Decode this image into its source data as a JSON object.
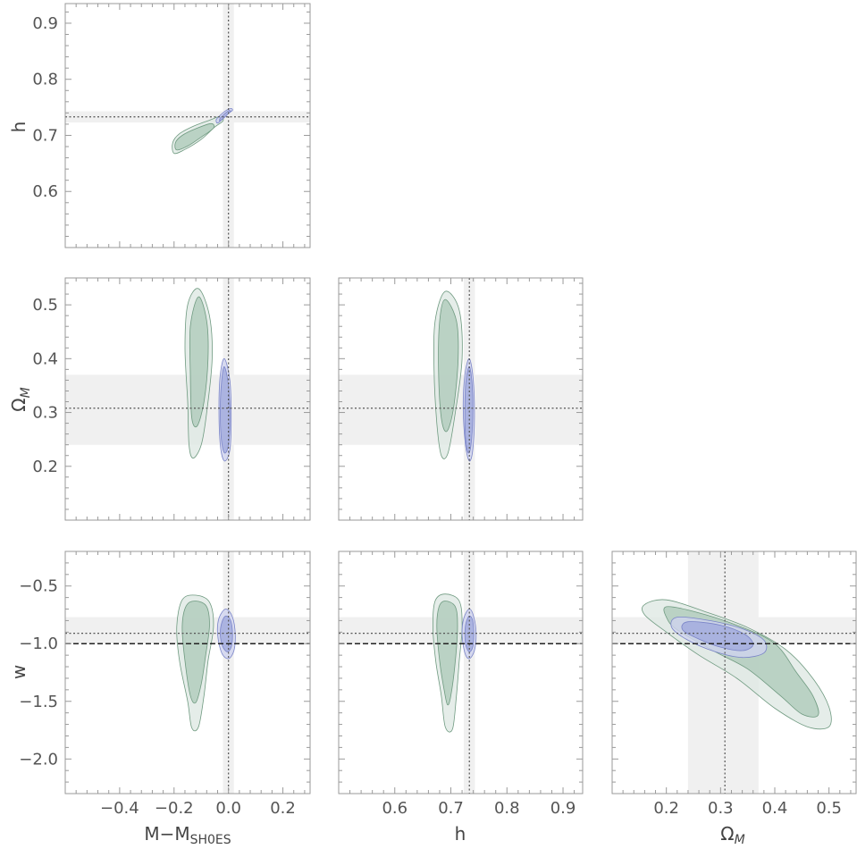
{
  "chart_data": {
    "type": "contour",
    "colors": {
      "green_fill_outer": "#dfe9e3",
      "green_fill_inner": "#b3cdbd",
      "green_stroke": "#6f9a80",
      "blue_fill_outer": "#cfd3ef",
      "blue_fill_inner": "#a3abdd",
      "blue_stroke": "#7a84c8",
      "band": "#f0f0f0",
      "frame": "#9a9a9a"
    },
    "labels": {
      "x_M": "M−M",
      "x_M_sub": "SH0ES",
      "x_h": "h",
      "x_Om": "Ω",
      "x_Om_sub": "M",
      "y_h": "h",
      "y_Om": "Ω",
      "y_Om_sub": "M",
      "y_w": "w"
    },
    "axes": {
      "M": {
        "range": [
          -0.6,
          0.3
        ],
        "ticks": [
          "−0.4",
          "−0.2",
          "0.0",
          "0.2"
        ],
        "tick_values": [
          -0.4,
          -0.2,
          0.0,
          0.2
        ]
      },
      "h": {
        "range": [
          0.5,
          0.935
        ],
        "ticks": [
          "0.6",
          "0.7",
          "0.8",
          "0.9"
        ],
        "tick_values": [
          0.6,
          0.7,
          0.8,
          0.9
        ]
      },
      "Om": {
        "range": [
          0.1,
          0.55
        ],
        "ticks": [
          "0.2",
          "0.3",
          "0.4",
          "0.5"
        ],
        "tick_values": [
          0.2,
          0.3,
          0.4,
          0.5
        ]
      },
      "w": {
        "range": [
          -2.3,
          -0.2
        ],
        "ticks": [
          "−2.0",
          "−1.5",
          "−1.0",
          "−0.5"
        ],
        "tick_values": [
          -2.0,
          -1.5,
          -1.0,
          -0.5
        ]
      }
    },
    "reference": {
      "M": {
        "value": 0.0,
        "band": [
          -0.02,
          0.02
        ]
      },
      "h": {
        "value": 0.733,
        "band": [
          0.723,
          0.743
        ]
      },
      "Om": {
        "value": 0.308,
        "band": [
          0.24,
          0.37
        ]
      },
      "w": {
        "value": -0.91,
        "band": [
          -1.0,
          -0.77
        ],
        "dashed": -1.0
      }
    },
    "panels": [
      {
        "name": "h-vs-M",
        "x": "M",
        "y": "h",
        "green": {
          "outer": [
            [
              -0.2,
              0.668
            ],
            [
              -0.16,
              0.675
            ],
            [
              -0.1,
              0.693
            ],
            [
              -0.05,
              0.715
            ],
            [
              -0.02,
              0.726
            ],
            [
              -0.03,
              0.734
            ],
            [
              -0.07,
              0.727
            ],
            [
              -0.13,
              0.716
            ],
            [
              -0.18,
              0.703
            ],
            [
              -0.205,
              0.687
            ]
          ],
          "inner": [
            [
              -0.19,
              0.674
            ],
            [
              -0.15,
              0.681
            ],
            [
              -0.1,
              0.697
            ],
            [
              -0.055,
              0.713
            ],
            [
              -0.065,
              0.721
            ],
            [
              -0.12,
              0.712
            ],
            [
              -0.17,
              0.7
            ],
            [
              -0.195,
              0.687
            ]
          ]
        },
        "blue": {
          "outer": [
            [
              -0.04,
              0.722
            ],
            [
              -0.02,
              0.73
            ],
            [
              0.0,
              0.739
            ],
            [
              0.015,
              0.745
            ],
            [
              0.008,
              0.748
            ],
            [
              -0.01,
              0.744
            ],
            [
              -0.03,
              0.736
            ],
            [
              -0.045,
              0.728
            ]
          ],
          "inner": [
            [
              -0.032,
              0.726
            ],
            [
              -0.015,
              0.732
            ],
            [
              0.0,
              0.739
            ],
            [
              0.008,
              0.743
            ],
            [
              0.0,
              0.744
            ],
            [
              -0.015,
              0.738
            ],
            [
              -0.03,
              0.731
            ]
          ]
        }
      },
      {
        "name": "Om-vs-M",
        "x": "M",
        "y": "Om",
        "green": {
          "outer": [
            [
              -0.11,
              0.53
            ],
            [
              -0.07,
              0.48
            ],
            [
              -0.06,
              0.4
            ],
            [
              -0.08,
              0.3
            ],
            [
              -0.1,
              0.24
            ],
            [
              -0.13,
              0.215
            ],
            [
              -0.145,
              0.24
            ],
            [
              -0.15,
              0.32
            ],
            [
              -0.16,
              0.42
            ],
            [
              -0.15,
              0.5
            ]
          ],
          "inner": [
            [
              -0.11,
              0.515
            ],
            [
              -0.08,
              0.47
            ],
            [
              -0.075,
              0.4
            ],
            [
              -0.09,
              0.32
            ],
            [
              -0.115,
              0.275
            ],
            [
              -0.135,
              0.29
            ],
            [
              -0.14,
              0.37
            ],
            [
              -0.14,
              0.46
            ]
          ]
        },
        "blue": {
          "outer": [
            [
              -0.015,
              0.4
            ],
            [
              0.005,
              0.36
            ],
            [
              0.01,
              0.29
            ],
            [
              0.005,
              0.23
            ],
            [
              -0.015,
              0.21
            ],
            [
              -0.03,
              0.24
            ],
            [
              -0.035,
              0.31
            ],
            [
              -0.03,
              0.37
            ]
          ],
          "inner": [
            [
              -0.015,
              0.385
            ],
            [
              0.0,
              0.35
            ],
            [
              0.005,
              0.29
            ],
            [
              0.0,
              0.24
            ],
            [
              -0.015,
              0.225
            ],
            [
              -0.027,
              0.255
            ],
            [
              -0.03,
              0.31
            ],
            [
              -0.025,
              0.36
            ]
          ]
        }
      },
      {
        "name": "Om-vs-h",
        "x": "h",
        "y": "Om",
        "green": {
          "outer": [
            [
              0.69,
              0.525
            ],
            [
              0.715,
              0.49
            ],
            [
              0.72,
              0.4
            ],
            [
              0.708,
              0.3
            ],
            [
              0.695,
              0.225
            ],
            [
              0.683,
              0.22
            ],
            [
              0.675,
              0.28
            ],
            [
              0.67,
              0.38
            ],
            [
              0.672,
              0.47
            ]
          ],
          "inner": [
            [
              0.69,
              0.51
            ],
            [
              0.71,
              0.47
            ],
            [
              0.713,
              0.4
            ],
            [
              0.705,
              0.31
            ],
            [
              0.693,
              0.265
            ],
            [
              0.683,
              0.29
            ],
            [
              0.678,
              0.38
            ],
            [
              0.68,
              0.47
            ]
          ]
        },
        "blue": {
          "outer": [
            [
              0.733,
              0.4
            ],
            [
              0.74,
              0.36
            ],
            [
              0.742,
              0.29
            ],
            [
              0.739,
              0.23
            ],
            [
              0.733,
              0.21
            ],
            [
              0.726,
              0.24
            ],
            [
              0.722,
              0.31
            ],
            [
              0.725,
              0.37
            ]
          ],
          "inner": [
            [
              0.733,
              0.385
            ],
            [
              0.738,
              0.35
            ],
            [
              0.739,
              0.29
            ],
            [
              0.736,
              0.24
            ],
            [
              0.731,
              0.225
            ],
            [
              0.726,
              0.255
            ],
            [
              0.725,
              0.31
            ],
            [
              0.727,
              0.36
            ]
          ]
        }
      },
      {
        "name": "w-vs-M",
        "x": "M",
        "y": "w",
        "green": {
          "outer": [
            [
              -0.12,
              -0.58
            ],
            [
              -0.07,
              -0.64
            ],
            [
              -0.055,
              -0.85
            ],
            [
              -0.075,
              -1.15
            ],
            [
              -0.09,
              -1.45
            ],
            [
              -0.11,
              -1.72
            ],
            [
              -0.135,
              -1.73
            ],
            [
              -0.15,
              -1.5
            ],
            [
              -0.18,
              -1.15
            ],
            [
              -0.19,
              -0.85
            ],
            [
              -0.17,
              -0.62
            ]
          ],
          "inner": [
            [
              -0.12,
              -0.63
            ],
            [
              -0.08,
              -0.68
            ],
            [
              -0.07,
              -0.85
            ],
            [
              -0.085,
              -1.12
            ],
            [
              -0.1,
              -1.35
            ],
            [
              -0.12,
              -1.51
            ],
            [
              -0.14,
              -1.45
            ],
            [
              -0.16,
              -1.15
            ],
            [
              -0.17,
              -0.85
            ],
            [
              -0.155,
              -0.67
            ]
          ]
        },
        "blue": {
          "outer": [
            [
              -0.01,
              -0.7
            ],
            [
              0.015,
              -0.77
            ],
            [
              0.025,
              -0.92
            ],
            [
              0.02,
              -1.06
            ],
            [
              0.0,
              -1.13
            ],
            [
              -0.025,
              -1.08
            ],
            [
              -0.04,
              -0.92
            ],
            [
              -0.035,
              -0.78
            ]
          ],
          "inner": [
            [
              -0.01,
              -0.76
            ],
            [
              0.008,
              -0.8
            ],
            [
              0.015,
              -0.92
            ],
            [
              0.01,
              -1.03
            ],
            [
              -0.005,
              -1.07
            ],
            [
              -0.022,
              -1.02
            ],
            [
              -0.03,
              -0.92
            ],
            [
              -0.025,
              -0.82
            ]
          ]
        }
      },
      {
        "name": "w-vs-h",
        "x": "h",
        "y": "w",
        "green": {
          "outer": [
            [
              0.69,
              -0.57
            ],
            [
              0.715,
              -0.63
            ],
            [
              0.72,
              -0.85
            ],
            [
              0.715,
              -1.15
            ],
            [
              0.71,
              -1.45
            ],
            [
              0.703,
              -1.74
            ],
            [
              0.69,
              -1.72
            ],
            [
              0.683,
              -1.45
            ],
            [
              0.673,
              -1.15
            ],
            [
              0.668,
              -0.85
            ],
            [
              0.672,
              -0.63
            ]
          ],
          "inner": [
            [
              0.69,
              -0.63
            ],
            [
              0.708,
              -0.68
            ],
            [
              0.712,
              -0.85
            ],
            [
              0.708,
              -1.15
            ],
            [
              0.7,
              -1.45
            ],
            [
              0.694,
              -1.53
            ],
            [
              0.688,
              -1.4
            ],
            [
              0.68,
              -1.15
            ],
            [
              0.675,
              -0.85
            ],
            [
              0.679,
              -0.68
            ]
          ]
        },
        "blue": {
          "outer": [
            [
              0.733,
              -0.7
            ],
            [
              0.741,
              -0.77
            ],
            [
              0.745,
              -0.92
            ],
            [
              0.742,
              -1.06
            ],
            [
              0.733,
              -1.13
            ],
            [
              0.725,
              -1.08
            ],
            [
              0.72,
              -0.92
            ],
            [
              0.723,
              -0.78
            ]
          ],
          "inner": [
            [
              0.733,
              -0.76
            ],
            [
              0.739,
              -0.8
            ],
            [
              0.741,
              -0.92
            ],
            [
              0.739,
              -1.03
            ],
            [
              0.733,
              -1.07
            ],
            [
              0.727,
              -1.02
            ],
            [
              0.725,
              -0.92
            ],
            [
              0.727,
              -0.82
            ]
          ]
        }
      },
      {
        "name": "w-vs-Om",
        "x": "Om",
        "y": "w",
        "green": {
          "outer": [
            [
              0.16,
              -0.66
            ],
            [
              0.2,
              -0.62
            ],
            [
              0.27,
              -0.72
            ],
            [
              0.35,
              -0.86
            ],
            [
              0.42,
              -1.05
            ],
            [
              0.47,
              -1.3
            ],
            [
              0.5,
              -1.55
            ],
            [
              0.5,
              -1.72
            ],
            [
              0.46,
              -1.72
            ],
            [
              0.4,
              -1.56
            ],
            [
              0.33,
              -1.3
            ],
            [
              0.26,
              -1.1
            ],
            [
              0.2,
              -0.9
            ],
            [
              0.16,
              -0.75
            ]
          ],
          "inner": [
            [
              0.2,
              -0.68
            ],
            [
              0.25,
              -0.72
            ],
            [
              0.33,
              -0.84
            ],
            [
              0.4,
              -1.0
            ],
            [
              0.44,
              -1.25
            ],
            [
              0.47,
              -1.45
            ],
            [
              0.48,
              -1.62
            ],
            [
              0.45,
              -1.61
            ],
            [
              0.41,
              -1.45
            ],
            [
              0.35,
              -1.22
            ],
            [
              0.29,
              -1.07
            ],
            [
              0.22,
              -0.88
            ],
            [
              0.2,
              -0.77
            ]
          ]
        },
        "blue": {
          "outer": [
            [
              0.22,
              -0.77
            ],
            [
              0.28,
              -0.8
            ],
            [
              0.34,
              -0.87
            ],
            [
              0.38,
              -0.97
            ],
            [
              0.38,
              -1.08
            ],
            [
              0.34,
              -1.12
            ],
            [
              0.29,
              -1.07
            ],
            [
              0.24,
              -0.97
            ],
            [
              0.21,
              -0.86
            ]
          ],
          "inner": [
            [
              0.24,
              -0.81
            ],
            [
              0.3,
              -0.84
            ],
            [
              0.345,
              -0.92
            ],
            [
              0.36,
              -1.01
            ],
            [
              0.34,
              -1.06
            ],
            [
              0.3,
              -1.03
            ],
            [
              0.26,
              -0.96
            ],
            [
              0.23,
              -0.88
            ]
          ]
        }
      }
    ]
  }
}
